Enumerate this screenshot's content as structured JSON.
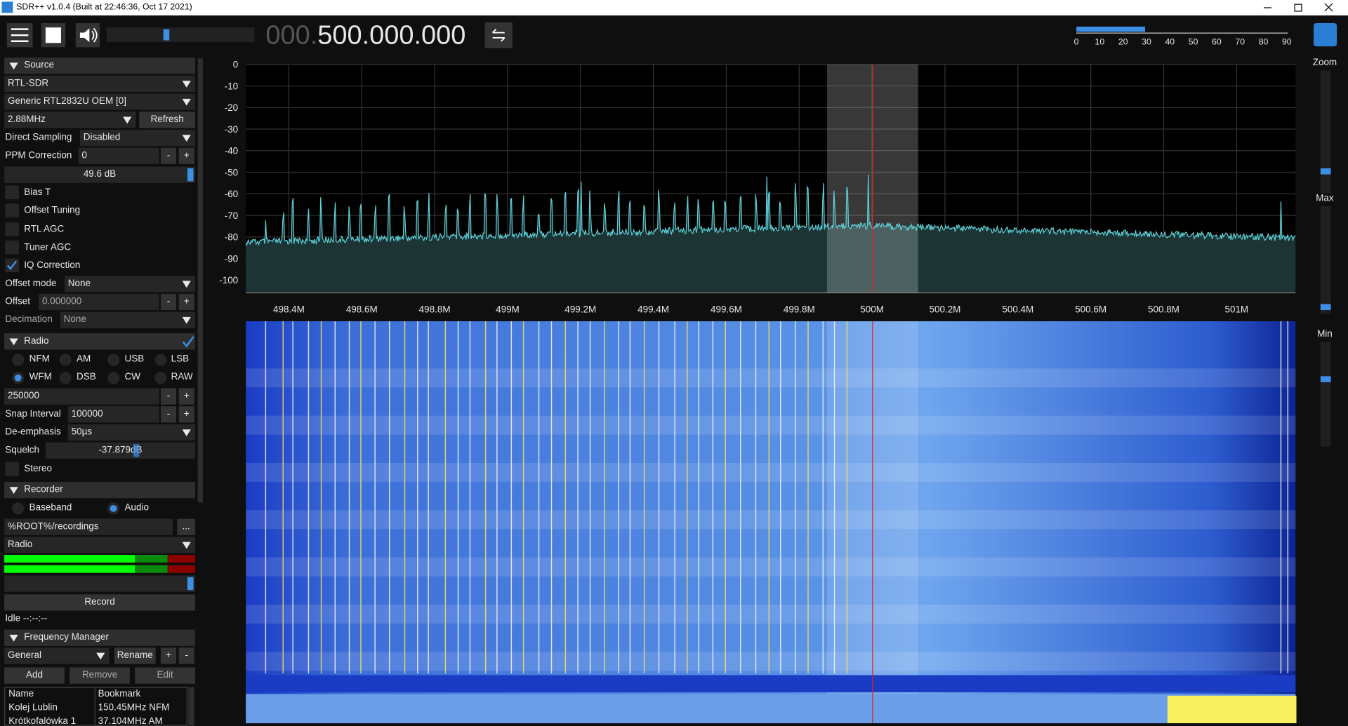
{
  "window": {
    "title": "SDR++ v1.0.4 (Built at 22:46:36, Oct 17 2021)"
  },
  "toolbar": {
    "frequency_prefix": "000.",
    "frequency": "500.000.000",
    "scale_labels": [
      "0",
      "10",
      "20",
      "30",
      "40",
      "50",
      "60",
      "70",
      "80",
      "90"
    ]
  },
  "controls": {
    "minus": "-",
    "plus": "+",
    "browse": "..."
  },
  "source": {
    "header": "Source",
    "device_type": "RTL-SDR",
    "device": "Generic RTL2832U OEM [0]",
    "sample_rate": "2.88MHz",
    "refresh": "Refresh",
    "direct_sampling_label": "Direct Sampling",
    "direct_sampling": "Disabled",
    "ppm_label": "PPM Correction",
    "ppm": "0",
    "gain": "49.6 dB",
    "bias_t": "Bias T",
    "offset_tuning": "Offset Tuning",
    "rtl_agc": "RTL AGC",
    "tuner_agc": "Tuner AGC",
    "iq_correction": "IQ Correction",
    "offset_mode_label": "Offset mode",
    "offset_mode": "None",
    "offset_label": "Offset",
    "offset": "0.000000",
    "decimation_label": "Decimation",
    "decimation": "None"
  },
  "radio": {
    "header": "Radio",
    "modes": [
      "NFM",
      "AM",
      "USB",
      "LSB",
      "WFM",
      "DSB",
      "CW",
      "RAW"
    ],
    "bandwidth": "250000",
    "snap_label": "Snap Interval",
    "snap": "100000",
    "deemphasis_label": "De-emphasis",
    "deemphasis": "50µs",
    "squelch_label": "Squelch",
    "squelch": "-37.879dB",
    "stereo": "Stereo"
  },
  "recorder": {
    "header": "Recorder",
    "modes": [
      "Baseband",
      "Audio"
    ],
    "path": "%ROOT%/recordings",
    "stream": "Radio",
    "record": "Record",
    "status": "Idle --:--:--"
  },
  "frequency_manager": {
    "header": "Frequency Manager",
    "list": "General",
    "rename": "Rename",
    "add": "Add",
    "remove": "Remove",
    "edit": "Edit",
    "columns": [
      "Name",
      "Bookmark"
    ],
    "rows": [
      [
        "Kolej Lublin",
        "150.45MHz NFM"
      ],
      [
        "Krótkofalówka 1",
        "37.104MHz AM"
      ]
    ]
  },
  "fft": {
    "y_labels": [
      "0",
      "-10",
      "-20",
      "-30",
      "-40",
      "-50",
      "-60",
      "-70",
      "-80",
      "-90",
      "-100"
    ],
    "x_labels": [
      "498.4M",
      "498.6M",
      "498.8M",
      "499M",
      "499.2M",
      "499.4M",
      "499.6M",
      "499.8M",
      "500M",
      "500.2M",
      "500.4M",
      "500.6M",
      "500.8M",
      "501M"
    ]
  },
  "sliders": {
    "zoom": "Zoom",
    "max": "Max",
    "min": "Min"
  }
}
